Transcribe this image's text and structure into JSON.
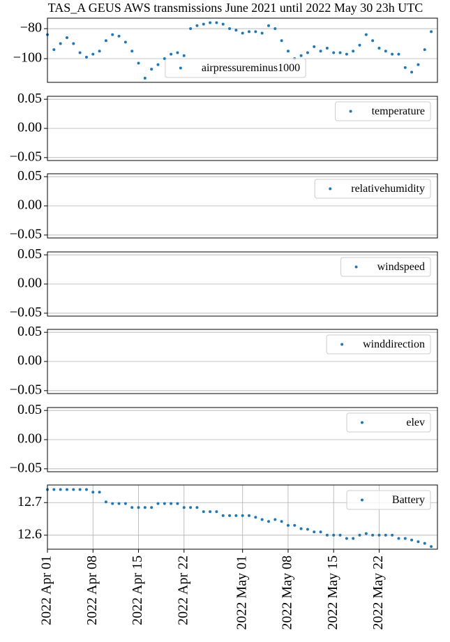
{
  "chart_data": [
    {
      "type": "scatter",
      "title": "TAS_A GEUS AWS transmissions June 2021 until 2022 May 30 23h UTC",
      "x": [
        "2022-04-01",
        "2022-04-02",
        "2022-04-03",
        "2022-04-04",
        "2022-04-05",
        "2022-04-06",
        "2022-04-07",
        "2022-04-08",
        "2022-04-09",
        "2022-04-10",
        "2022-04-11",
        "2022-04-12",
        "2022-04-13",
        "2022-04-14",
        "2022-04-15",
        "2022-04-16",
        "2022-04-17",
        "2022-04-18",
        "2022-04-19",
        "2022-04-20",
        "2022-04-21",
        "2022-04-22",
        "2022-04-23",
        "2022-04-24",
        "2022-04-25",
        "2022-04-26",
        "2022-04-27",
        "2022-04-28",
        "2022-04-29",
        "2022-04-30",
        "2022-05-01",
        "2022-05-02",
        "2022-05-03",
        "2022-05-04",
        "2022-05-05",
        "2022-05-06",
        "2022-05-07",
        "2022-05-08",
        "2022-05-09",
        "2022-05-10",
        "2022-05-11",
        "2022-05-12",
        "2022-05-13",
        "2022-05-14",
        "2022-05-15",
        "2022-05-16",
        "2022-05-17",
        "2022-05-18",
        "2022-05-19",
        "2022-05-20",
        "2022-05-21",
        "2022-05-22",
        "2022-05-23",
        "2022-05-24",
        "2022-05-25",
        "2022-05-26",
        "2022-05-27",
        "2022-05-28",
        "2022-05-29",
        "2022-05-30"
      ],
      "series": [
        {
          "name": "airpressureminus1000",
          "color": "#1f77b4",
          "values": [
            -84,
            -94,
            -90,
            -86,
            -90,
            -96,
            -99,
            -97,
            -95,
            -88,
            -84,
            -85,
            -89,
            -95,
            -103,
            -113,
            -107,
            -104,
            -100,
            -97,
            -96,
            -98,
            -80,
            -78,
            -77,
            -76,
            -76,
            -77,
            -80,
            -81,
            -83,
            -82,
            -82,
            -83,
            -78,
            -80,
            -88,
            -95,
            -100,
            -98,
            -96,
            -92,
            -95,
            -93,
            -96,
            -96,
            -97,
            -95,
            -91,
            -84,
            -88,
            -93,
            -95,
            -97,
            -97,
            -106,
            -109,
            -104,
            -94,
            -82
          ]
        }
      ],
      "xlim": [
        "2022-04-01",
        "2022-05-30T23:00"
      ],
      "ylim": [
        -115.8,
        -73
      ],
      "yticks": [
        {
          "value": -100,
          "label": "−100"
        },
        {
          "value": -80,
          "label": "−80"
        }
      ],
      "grid": true,
      "legend": "lower center"
    },
    {
      "type": "scatter",
      "x": [],
      "series": [
        {
          "name": "temperature",
          "color": "#1f77b4",
          "values": []
        }
      ],
      "xlim": [
        "2022-04-01",
        "2022-05-30T23:00"
      ],
      "ylim": [
        -0.055,
        0.055
      ],
      "yticks": [
        {
          "value": -0.05,
          "label": "−0.05"
        },
        {
          "value": 0,
          "label": "0.00"
        },
        {
          "value": 0.05,
          "label": "0.05"
        }
      ],
      "grid": true,
      "legend": "upper right"
    },
    {
      "type": "scatter",
      "x": [],
      "series": [
        {
          "name": "relativehumidity",
          "color": "#1f77b4",
          "values": []
        }
      ],
      "xlim": [
        "2022-04-01",
        "2022-05-30T23:00"
      ],
      "ylim": [
        -0.055,
        0.055
      ],
      "yticks": [
        {
          "value": -0.05,
          "label": "−0.05"
        },
        {
          "value": 0,
          "label": "0.00"
        },
        {
          "value": 0.05,
          "label": "0.05"
        }
      ],
      "grid": true,
      "legend": "upper right"
    },
    {
      "type": "scatter",
      "x": [],
      "series": [
        {
          "name": "windspeed",
          "color": "#1f77b4",
          "values": []
        }
      ],
      "xlim": [
        "2022-04-01",
        "2022-05-30T23:00"
      ],
      "ylim": [
        -0.055,
        0.055
      ],
      "yticks": [
        {
          "value": -0.05,
          "label": "−0.05"
        },
        {
          "value": 0,
          "label": "0.00"
        },
        {
          "value": 0.05,
          "label": "0.05"
        }
      ],
      "grid": true,
      "legend": "upper right"
    },
    {
      "type": "scatter",
      "x": [],
      "series": [
        {
          "name": "winddirection",
          "color": "#1f77b4",
          "values": []
        }
      ],
      "xlim": [
        "2022-04-01",
        "2022-05-30T23:00"
      ],
      "ylim": [
        -0.055,
        0.055
      ],
      "yticks": [
        {
          "value": -0.05,
          "label": "−0.05"
        },
        {
          "value": 0,
          "label": "0.00"
        },
        {
          "value": 0.05,
          "label": "0.05"
        }
      ],
      "grid": true,
      "legend": "upper right"
    },
    {
      "type": "scatter",
      "x": [],
      "series": [
        {
          "name": "elev",
          "color": "#1f77b4",
          "values": []
        }
      ],
      "xlim": [
        "2022-04-01",
        "2022-05-30T23:00"
      ],
      "ylim": [
        -0.055,
        0.055
      ],
      "yticks": [
        {
          "value": -0.05,
          "label": "−0.05"
        },
        {
          "value": 0,
          "label": "0.00"
        },
        {
          "value": 0.05,
          "label": "0.05"
        }
      ],
      "grid": true,
      "legend": "upper right"
    },
    {
      "type": "scatter",
      "x": [
        "2022-04-01",
        "2022-04-02",
        "2022-04-03",
        "2022-04-04",
        "2022-04-05",
        "2022-04-06",
        "2022-04-07",
        "2022-04-08",
        "2022-04-09",
        "2022-04-10",
        "2022-04-11",
        "2022-04-12",
        "2022-04-13",
        "2022-04-14",
        "2022-04-15",
        "2022-04-16",
        "2022-04-17",
        "2022-04-18",
        "2022-04-19",
        "2022-04-20",
        "2022-04-21",
        "2022-04-22",
        "2022-04-23",
        "2022-04-24",
        "2022-04-25",
        "2022-04-26",
        "2022-04-27",
        "2022-04-28",
        "2022-04-29",
        "2022-04-30",
        "2022-05-01",
        "2022-05-02",
        "2022-05-03",
        "2022-05-04",
        "2022-05-05",
        "2022-05-06",
        "2022-05-07",
        "2022-05-08",
        "2022-05-09",
        "2022-05-10",
        "2022-05-11",
        "2022-05-12",
        "2022-05-13",
        "2022-05-14",
        "2022-05-15",
        "2022-05-16",
        "2022-05-17",
        "2022-05-18",
        "2022-05-19",
        "2022-05-20",
        "2022-05-21",
        "2022-05-22",
        "2022-05-23",
        "2022-05-24",
        "2022-05-25",
        "2022-05-26",
        "2022-05-27",
        "2022-05-28",
        "2022-05-29",
        "2022-05-30"
      ],
      "series": [
        {
          "name": "Battery",
          "color": "#1f77b4",
          "values": [
            12.74,
            12.74,
            12.74,
            12.74,
            12.74,
            12.74,
            12.74,
            12.732,
            12.732,
            12.702,
            12.697,
            12.697,
            12.697,
            12.685,
            12.685,
            12.685,
            12.685,
            12.697,
            12.697,
            12.697,
            12.697,
            12.685,
            12.685,
            12.685,
            12.672,
            12.672,
            12.672,
            12.66,
            12.66,
            12.66,
            12.66,
            12.66,
            12.655,
            12.648,
            12.642,
            12.648,
            12.642,
            12.63,
            12.63,
            12.62,
            12.618,
            12.61,
            12.61,
            12.6,
            12.6,
            12.6,
            12.59,
            12.59,
            12.6,
            12.605,
            12.6,
            12.6,
            12.6,
            12.6,
            12.59,
            12.59,
            12.585,
            12.58,
            12.575,
            12.565
          ]
        }
      ],
      "xlim": [
        "2022-04-01",
        "2022-05-30T23:00"
      ],
      "ylim": [
        12.557,
        12.754
      ],
      "xticks": [
        {
          "value": "2022-04-01",
          "label": "2022 Apr 01"
        },
        {
          "value": "2022-04-08",
          "label": "2022 Apr 08"
        },
        {
          "value": "2022-04-15",
          "label": "2022 Apr 15"
        },
        {
          "value": "2022-04-22",
          "label": "2022 Apr 22"
        },
        {
          "value": "2022-05-01",
          "label": "2022 May 01"
        },
        {
          "value": "2022-05-08",
          "label": "2022 May 08"
        },
        {
          "value": "2022-05-15",
          "label": "2022 May 15"
        },
        {
          "value": "2022-05-22",
          "label": "2022 May 22"
        }
      ],
      "yticks": [
        {
          "value": 12.6,
          "label": "12.6"
        },
        {
          "value": 12.7,
          "label": "12.7"
        }
      ],
      "grid": true,
      "legend": "upper right"
    }
  ]
}
